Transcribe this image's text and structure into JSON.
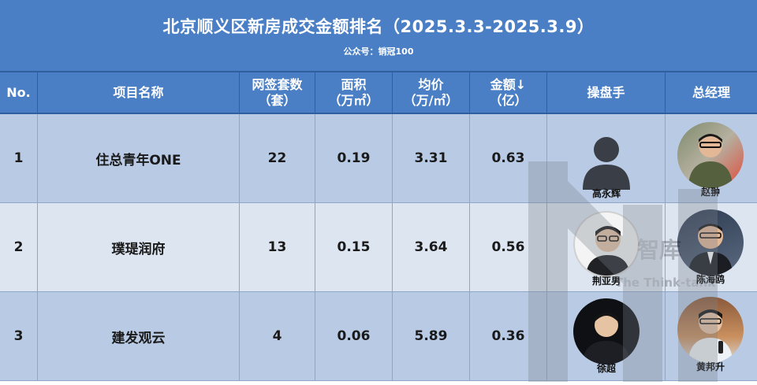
{
  "header": {
    "title": "北京顺义区新房成交金额排名（2025.3.3-2025.3.9）",
    "subtitle": "公众号：销冠100"
  },
  "columns": [
    "No.",
    "项目名称",
    "网签套数\n（套）",
    "面积\n（万㎡）",
    "均价\n（万/㎡）",
    "金额↓\n（亿）",
    "操盘手",
    "总经理"
  ],
  "rows": [
    {
      "no": "1",
      "project": "住总青年ONE",
      "units": "22",
      "area": "0.19",
      "price": "3.31",
      "amount": "0.63",
      "operator": "高永辉",
      "manager": "赵翀"
    },
    {
      "no": "2",
      "project": "璞瑅润府",
      "units": "13",
      "area": "0.15",
      "price": "3.64",
      "amount": "0.56",
      "operator": "荆亚男",
      "manager": "陈海鸥"
    },
    {
      "no": "3",
      "project": "建发观云",
      "units": "4",
      "area": "0.06",
      "price": "5.89",
      "amount": "0.36",
      "operator": "徐超",
      "manager": "黄邦升"
    }
  ],
  "watermark": {
    "text1": "智库",
    "text2": "The Think-tank"
  },
  "colors": {
    "header": "#4a7fc6",
    "row_odd": "#b9cbe4",
    "row_even": "#dde5f1"
  }
}
